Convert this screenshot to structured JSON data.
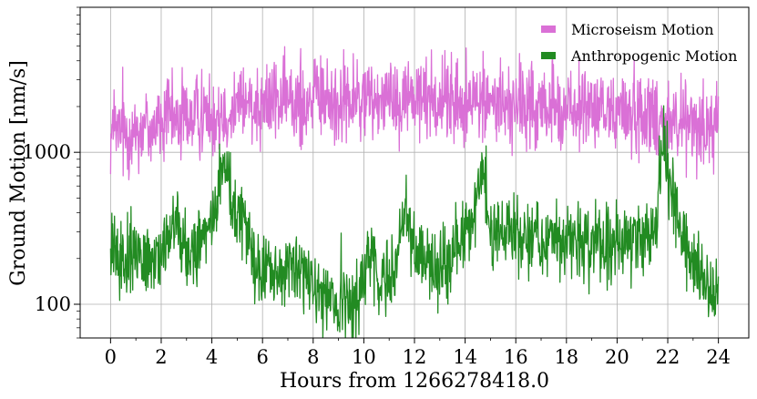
{
  "chart_data": {
    "type": "line",
    "xlabel": "Hours from 1266278418.0",
    "ylabel": "Ground Motion [nm/s]",
    "xlim": [
      -1.2,
      25.2
    ],
    "ylim": [
      60,
      9000
    ],
    "yscale": "log",
    "grid": true,
    "legend_position": "top-right",
    "x_ticks": [
      0,
      2,
      4,
      6,
      8,
      10,
      12,
      14,
      16,
      18,
      20,
      22,
      24
    ],
    "x_tick_labels": [
      "0",
      "2",
      "4",
      "6",
      "8",
      "10",
      "12",
      "14",
      "16",
      "18",
      "20",
      "22",
      "24"
    ],
    "y_ticks": [
      100,
      1000
    ],
    "y_tick_labels": [
      "100",
      "1000"
    ],
    "series": [
      {
        "name": "Microseism Motion",
        "color": "#da70d6",
        "noise": 0.14,
        "x": [
          0,
          1,
          2,
          3,
          4,
          5,
          6,
          7,
          8,
          9,
          10,
          10.8,
          12,
          13,
          14,
          15,
          16,
          17,
          18,
          19,
          20,
          21,
          22,
          23,
          24
        ],
        "values": [
          1300,
          1400,
          1550,
          1700,
          1850,
          2000,
          2200,
          2150,
          2250,
          2150,
          2150,
          2400,
          2300,
          2250,
          2100,
          2200,
          2000,
          1950,
          1900,
          1850,
          1850,
          1800,
          1700,
          1500,
          1500
        ]
      },
      {
        "name": "Anthropogenic Motion",
        "color": "#228b22",
        "noise": 0.12,
        "x": [
          0,
          0.5,
          1,
          1.5,
          2,
          2.3,
          2.6,
          3,
          3.5,
          3.8,
          4.2,
          4.5,
          4.9,
          5.3,
          5.7,
          6,
          6.5,
          7,
          7.5,
          8,
          8.5,
          9,
          9.5,
          10,
          10.3,
          10.6,
          11,
          11.3,
          11.6,
          12,
          12.5,
          13,
          13.5,
          14,
          14.4,
          14.7,
          15,
          15.5,
          16,
          17,
          18,
          19,
          20,
          21,
          21.5,
          21.8,
          22.2,
          22.7,
          23,
          23.5,
          24
        ],
        "values": [
          220,
          200,
          210,
          190,
          220,
          310,
          360,
          230,
          190,
          320,
          400,
          950,
          400,
          330,
          180,
          150,
          150,
          180,
          160,
          130,
          115,
          100,
          95,
          140,
          250,
          140,
          130,
          180,
          480,
          230,
          210,
          170,
          220,
          300,
          380,
          800,
          320,
          290,
          300,
          270,
          250,
          250,
          260,
          270,
          300,
          1250,
          450,
          250,
          180,
          140,
          130
        ]
      }
    ]
  }
}
